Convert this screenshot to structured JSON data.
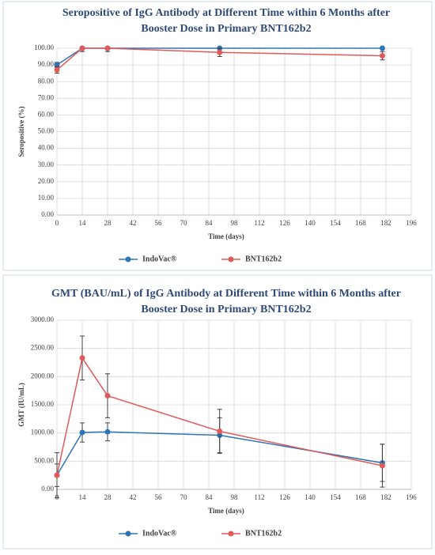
{
  "chart_data": [
    {
      "type": "line",
      "title": [
        "Seropositive of IgG Antibody at Different Time within 6 Months after",
        "Booster Dose in Primary BNT162b2"
      ],
      "x_label": "Time (days)",
      "y_label": "Seropositive (%)",
      "x": [
        0,
        14,
        28,
        90,
        180
      ],
      "series": [
        {
          "name": "IndoVac®",
          "color": "#2e75b6",
          "values": [
            90,
            100,
            100,
            100,
            100
          ],
          "errors": [
            1.5,
            0,
            0,
            0,
            0
          ]
        },
        {
          "name": "BNT162b2",
          "color": "#e05a5a",
          "values": [
            87,
            100,
            100,
            97.5,
            95.5
          ],
          "errors": [
            2,
            2,
            2,
            2.5,
            2.5
          ]
        }
      ],
      "xlim": [
        0,
        196
      ],
      "xticks": [
        0,
        14,
        28,
        42,
        56,
        70,
        84,
        98,
        112,
        126,
        140,
        154,
        168,
        182,
        196
      ],
      "ylim": [
        0,
        100
      ],
      "yticks": [
        {
          "value": 0,
          "label": "0.00"
        },
        {
          "value": 10,
          "label": "10.00"
        },
        {
          "value": 20,
          "label": "20.00"
        },
        {
          "value": 30,
          "label": "30.00"
        },
        {
          "value": 40,
          "label": "40.00"
        },
        {
          "value": 50,
          "label": "50.00"
        },
        {
          "value": 60,
          "label": "60.00"
        },
        {
          "value": 70,
          "label": "70.00"
        },
        {
          "value": 80,
          "label": "80.00"
        },
        {
          "value": 90,
          "label": "90.00"
        },
        {
          "value": 100,
          "label": "100.00"
        }
      ],
      "grid": true,
      "legend": "bottom"
    },
    {
      "type": "line",
      "title": [
        "GMT (BAU/mL) of IgG Antibody at Different Time within 6 Months after",
        "Booster Dose in Primary BNT162b2"
      ],
      "x_label": "Time (days)",
      "y_label": "GMT (IU/mL)",
      "x": [
        0,
        14,
        28,
        90,
        180
      ],
      "series": [
        {
          "name": "IndoVac®",
          "color": "#2e75b6",
          "values": [
            250,
            1010,
            1020,
            960,
            470
          ],
          "errors": [
            200,
            170,
            160,
            310,
            330
          ]
        },
        {
          "name": "BNT162b2",
          "color": "#e05a5a",
          "values": [
            250,
            2330,
            1660,
            1030,
            420
          ],
          "errors": [
            400,
            390,
            390,
            390,
            380
          ]
        }
      ],
      "xlim": [
        0,
        196
      ],
      "xticks": [
        0,
        14,
        28,
        42,
        56,
        70,
        84,
        98,
        112,
        126,
        140,
        154,
        168,
        182,
        196
      ],
      "ylim": [
        0,
        3000
      ],
      "yticks": [
        {
          "value": 0,
          "label": "0.00"
        },
        {
          "value": 500,
          "label": "500.00"
        },
        {
          "value": 1000,
          "label": "1000.00"
        },
        {
          "value": 1500,
          "label": "1500.00"
        },
        {
          "value": 2000,
          "label": "2000.00"
        },
        {
          "value": 2500,
          "label": "2500.00"
        },
        {
          "value": 3000,
          "label": "3000.00"
        }
      ],
      "grid": true,
      "legend": "bottom"
    }
  ]
}
